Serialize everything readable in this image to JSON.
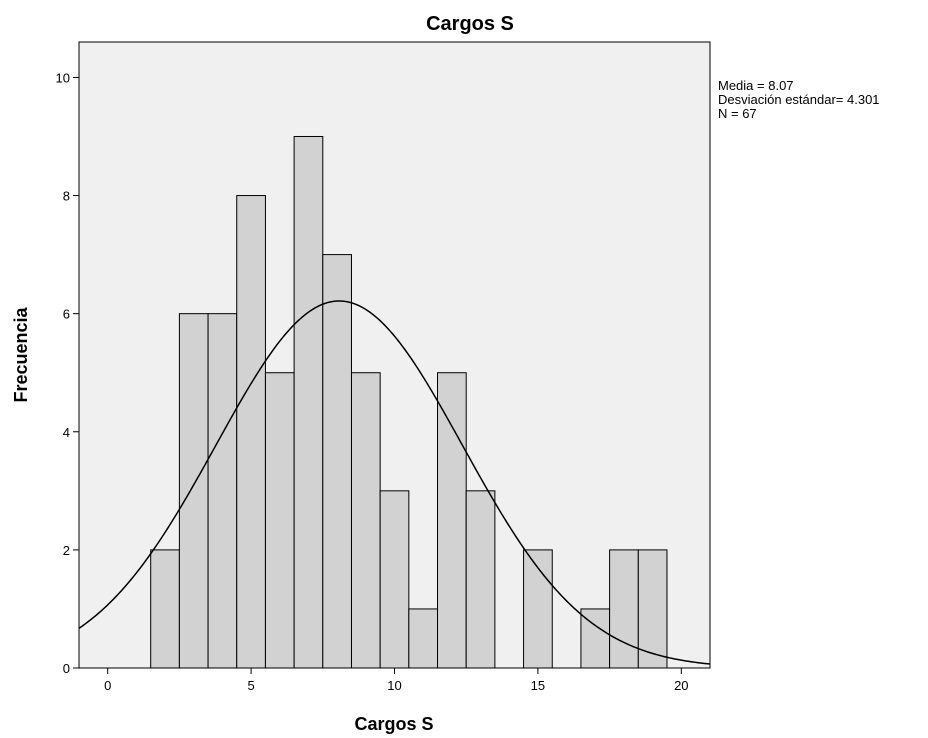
{
  "chart_data": {
    "type": "bar",
    "subtype": "histogram",
    "title": "Cargos S",
    "xlabel": "Cargos S",
    "ylabel": "Frecuencia",
    "xlim": [
      -1.0,
      21.0
    ],
    "ylim": [
      0,
      10.6
    ],
    "xticks": [
      0,
      5,
      10,
      15,
      20
    ],
    "yticks": [
      0,
      2,
      4,
      6,
      8,
      10
    ],
    "bin_width": 1,
    "bins": [
      {
        "x": 2,
        "count": 2
      },
      {
        "x": 3,
        "count": 6
      },
      {
        "x": 4,
        "count": 6
      },
      {
        "x": 5,
        "count": 8
      },
      {
        "x": 6,
        "count": 5
      },
      {
        "x": 7,
        "count": 9
      },
      {
        "x": 8,
        "count": 7
      },
      {
        "x": 9,
        "count": 5
      },
      {
        "x": 10,
        "count": 3
      },
      {
        "x": 11,
        "count": 1
      },
      {
        "x": 12,
        "count": 5
      },
      {
        "x": 13,
        "count": 3
      },
      {
        "x": 15,
        "count": 2
      },
      {
        "x": 17,
        "count": 1
      },
      {
        "x": 18,
        "count": 2
      },
      {
        "x": 19,
        "count": 2
      }
    ],
    "normal_curve": {
      "mean": 8.07,
      "sd": 4.301,
      "n": 67
    },
    "stats_lines": [
      "Media = 8.07",
      "Desviación estándar= 4.301",
      "N = 67"
    ],
    "grid": false,
    "colors": {
      "plot_background": "#f0f0f0",
      "bar_fill": "#d2d2d2",
      "bar_stroke": "#000000",
      "curve": "#000000",
      "axis": "#000000"
    }
  }
}
